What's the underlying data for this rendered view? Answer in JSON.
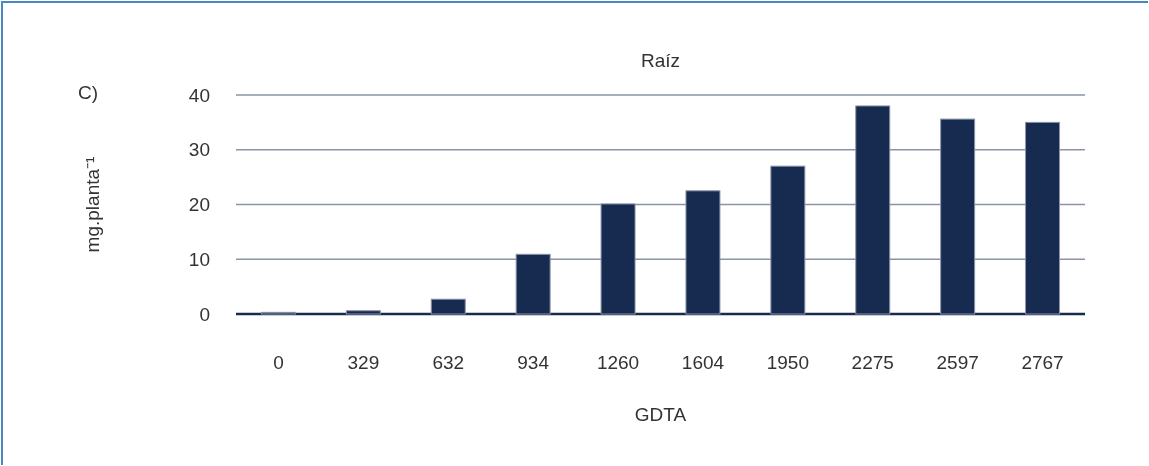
{
  "chart_data": {
    "type": "bar",
    "title": "Raíz",
    "xlabel": "GDTA",
    "ylabel": "mg.planta⁻¹",
    "annotations": [
      "C)"
    ],
    "categories": [
      "0",
      "329",
      "632",
      "934",
      "1260",
      "1604",
      "1950",
      "2275",
      "2597",
      "2767"
    ],
    "values": [
      0.3,
      0.6,
      2.7,
      10.9,
      20.1,
      22.5,
      27.0,
      38.0,
      35.6,
      35.0
    ],
    "color": "#172b50",
    "ylim": [
      0,
      40
    ],
    "yticks": [
      0,
      10,
      20,
      30,
      40
    ],
    "grid": "y"
  }
}
